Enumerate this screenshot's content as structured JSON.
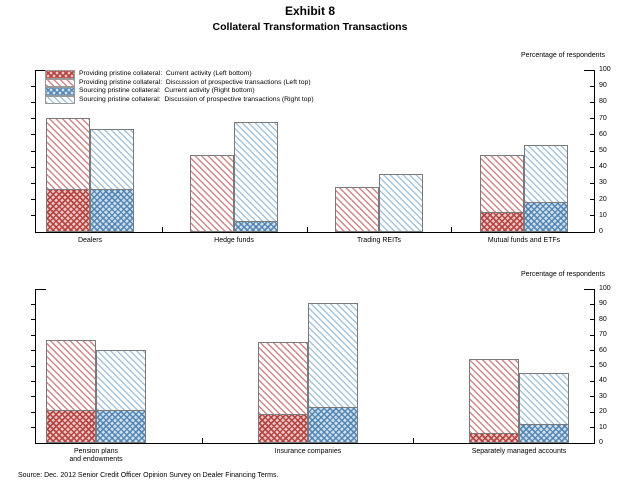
{
  "title": "Exhibit 8",
  "subtitle": "Collateral Transformation Transactions",
  "source_note": "Source: Dec. 2012 Senior Credit Officer Opinion Survey on Dealer Financing Terms.",
  "axis_title": "Percentage of respondents",
  "colors": {
    "providing_red": "#c0504d",
    "sourcing_blue": "#7ba7cc",
    "bar_border": "#7a7a7a",
    "axis": "#000000"
  },
  "legend": [
    {
      "pattern": "red-cross",
      "label": "Providing pristine collateral:  Current activity (Left bottom)"
    },
    {
      "pattern": "red-diag",
      "label": "Providing pristine collateral:  Discussion of prospective transactions (Left top)"
    },
    {
      "pattern": "blue-cross",
      "label": "Sourcing pristine collateral:  Current activity (Right bottom)"
    },
    {
      "pattern": "blue-diag",
      "label": "Sourcing pristine collateral:  Discussion of prospective transactions (Right top)"
    }
  ],
  "chart_data": [
    {
      "type": "bar",
      "stacked": true,
      "title": "",
      "ylabel": "Percentage of respondents",
      "ylim": [
        0,
        100
      ],
      "yticks": [
        0,
        10,
        20,
        30,
        40,
        50,
        60,
        70,
        80,
        90,
        100
      ],
      "grid": false,
      "legend_position": "top-left-inside",
      "categories": [
        "Dealers",
        "Hedge funds",
        "Trading REITs",
        "Mutual funds and ETFs"
      ],
      "series": [
        {
          "name": "Providing pristine collateral: Current activity (Left bottom)",
          "pattern": "red-cross",
          "values": [
            26,
            0,
            0,
            12
          ]
        },
        {
          "name": "Providing pristine collateral: Discussion of prospective transactions (Left top)",
          "pattern": "red-diag",
          "values": [
            44,
            47,
            27,
            35
          ]
        },
        {
          "name": "Sourcing pristine collateral: Current activity (Right bottom)",
          "pattern": "blue-cross",
          "values": [
            26,
            6,
            0,
            18
          ]
        },
        {
          "name": "Sourcing pristine collateral: Discussion of prospective transactions (Right top)",
          "pattern": "blue-diag",
          "values": [
            37,
            61,
            35,
            35
          ]
        }
      ],
      "left_bar_totals": [
        70,
        47,
        27,
        47
      ],
      "right_bar_totals": [
        63,
        67,
        35,
        53
      ]
    },
    {
      "type": "bar",
      "stacked": true,
      "title": "",
      "ylabel": "Percentage of respondents",
      "ylim": [
        0,
        100
      ],
      "yticks": [
        0,
        10,
        20,
        30,
        40,
        50,
        60,
        70,
        80,
        90,
        100
      ],
      "grid": false,
      "categories": [
        "Pension plans\nand endowments",
        "Insurance companies",
        "Separately managed accounts"
      ],
      "series": [
        {
          "name": "Providing pristine collateral: Current activity (Left bottom)",
          "pattern": "red-cross",
          "values": [
            21,
            18,
            6
          ]
        },
        {
          "name": "Providing pristine collateral: Discussion of prospective transactions (Left top)",
          "pattern": "red-diag",
          "values": [
            45,
            47,
            48
          ]
        },
        {
          "name": "Sourcing pristine collateral: Current activity (Right bottom)",
          "pattern": "blue-cross",
          "values": [
            21,
            23,
            12
          ]
        },
        {
          "name": "Sourcing pristine collateral: Discussion of prospective transactions (Right top)",
          "pattern": "blue-diag",
          "values": [
            39,
            67,
            33
          ]
        }
      ],
      "left_bar_totals": [
        66,
        65,
        54
      ],
      "right_bar_totals": [
        60,
        90,
        45
      ]
    }
  ]
}
